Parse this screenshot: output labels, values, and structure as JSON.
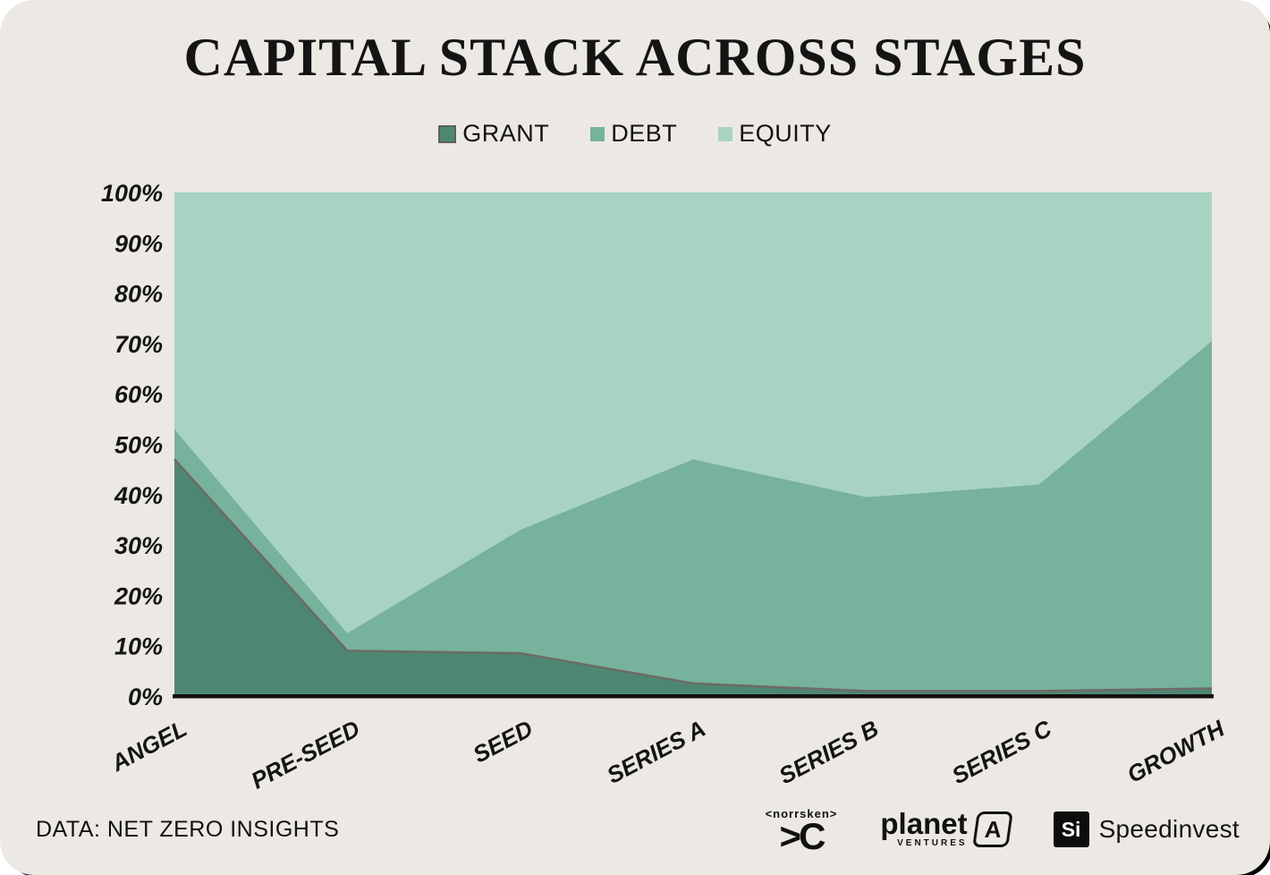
{
  "card": {
    "background": "#ECE9E4"
  },
  "chart_data": {
    "type": "area",
    "stacked": true,
    "title": "CAPITAL STACK ACROSS STAGES",
    "categories": [
      "ANGEL",
      "PRE-SEED",
      "SEED",
      "SERIES A",
      "SERIES B",
      "SERIES C",
      "GROWTH"
    ],
    "series": [
      {
        "name": "GRANT",
        "color": "#4D8773",
        "swatch_border": "#5F5F5F",
        "line_color": "#6E6A64",
        "values": [
          47,
          9,
          8.5,
          2.5,
          1,
          1,
          1.5
        ]
      },
      {
        "name": "DEBT",
        "color": "#76B29C",
        "values": [
          6,
          3.5,
          24.5,
          44.5,
          38.5,
          41,
          69
        ]
      },
      {
        "name": "EQUITY",
        "color": "#A8D3C3",
        "values": [
          47,
          87.5,
          67,
          53,
          60.5,
          58,
          29.5
        ]
      }
    ],
    "y_ticks": [
      "100%",
      "90%",
      "80%",
      "70%",
      "60%",
      "50%",
      "40%",
      "30%",
      "20%",
      "10%",
      "0%"
    ],
    "ylim": [
      0,
      100
    ],
    "grid": false,
    "legend_position": "top",
    "axis_line_color": "#111111",
    "label_color": "#141414"
  },
  "footer": {
    "source": "DATA: NET ZERO INSIGHTS",
    "logos": {
      "norrsken": {
        "top": "<norrsken>",
        "mark": ">C"
      },
      "planeta": {
        "word": "planet",
        "sub": "VENTURES",
        "mark": "A"
      },
      "speedinvest": {
        "mark": "Si",
        "word": "Speedinvest"
      }
    }
  }
}
